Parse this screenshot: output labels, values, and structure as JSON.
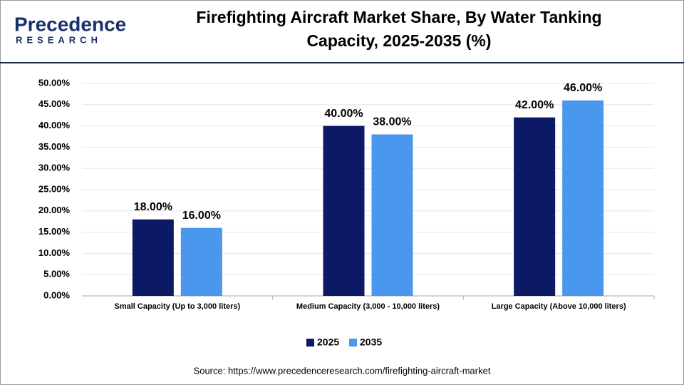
{
  "logo": {
    "brand": "Precedence",
    "tagline": "RESEARCH"
  },
  "chart_data": {
    "type": "bar",
    "title": [
      "Firefighting Aircraft Market Share, By Water Tanking",
      "Capacity, 2025-2035 (%)"
    ],
    "categories": [
      "Small Capacity (Up to 3,000 liters)",
      "Medium Capacity (3,000 - 10,000 liters)",
      "Large Capacity (Above 10,000 liters)"
    ],
    "series": [
      {
        "name": "2025",
        "color": "#0c1a66",
        "values": [
          18,
          40,
          42
        ],
        "value_labels": [
          "18.00%",
          "40.00%",
          "42.00%"
        ]
      },
      {
        "name": "2035",
        "color": "#4a97ee",
        "values": [
          16,
          38,
          46
        ],
        "value_labels": [
          "16.00%",
          "38.00%",
          "46.00%"
        ]
      }
    ],
    "ylim": [
      0,
      50
    ],
    "yticks": [
      {
        "value": 0,
        "label": "0.00%"
      },
      {
        "value": 5,
        "label": "5.00%"
      },
      {
        "value": 10,
        "label": "10.00%"
      },
      {
        "value": 15,
        "label": "15.00%"
      },
      {
        "value": 20,
        "label": "20.00%"
      },
      {
        "value": 25,
        "label": "25.00%"
      },
      {
        "value": 30,
        "label": "30.00%"
      },
      {
        "value": 35,
        "label": "35.00%"
      },
      {
        "value": 40,
        "label": "40.00%"
      },
      {
        "value": 45,
        "label": "45.00%"
      },
      {
        "value": 50,
        "label": "50.00%"
      }
    ],
    "grid": true,
    "legend": "bottom",
    "source": "Source: https://www.precedenceresearch.com/firefighting-aircraft-market"
  }
}
